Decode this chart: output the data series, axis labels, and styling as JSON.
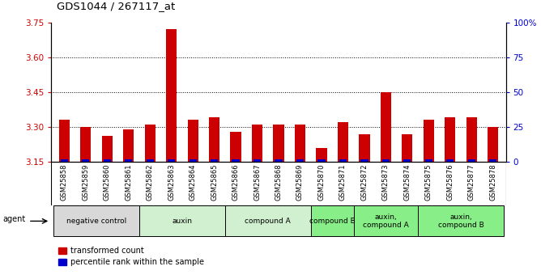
{
  "title": "GDS1044 / 267117_at",
  "samples": [
    "GSM25858",
    "GSM25859",
    "GSM25860",
    "GSM25861",
    "GSM25862",
    "GSM25863",
    "GSM25864",
    "GSM25865",
    "GSM25866",
    "GSM25867",
    "GSM25868",
    "GSM25869",
    "GSM25870",
    "GSM25871",
    "GSM25872",
    "GSM25873",
    "GSM25874",
    "GSM25875",
    "GSM25876",
    "GSM25877",
    "GSM25878"
  ],
  "red_values": [
    3.33,
    3.3,
    3.26,
    3.29,
    3.31,
    3.72,
    3.33,
    3.34,
    3.28,
    3.31,
    3.31,
    3.31,
    3.21,
    3.32,
    3.27,
    3.45,
    3.27,
    3.33,
    3.34,
    3.34,
    3.3
  ],
  "blue_values": [
    2,
    2,
    2,
    2,
    2,
    2,
    2,
    2,
    2,
    2,
    2,
    2,
    2,
    2,
    2,
    2,
    2,
    2,
    2,
    2,
    2
  ],
  "ylim": [
    3.15,
    3.75
  ],
  "yticks_left": [
    3.15,
    3.3,
    3.45,
    3.6,
    3.75
  ],
  "yticks_right": [
    0,
    25,
    50,
    75,
    100
  ],
  "gridlines": [
    3.3,
    3.45,
    3.6
  ],
  "groups": [
    {
      "label": "negative control",
      "start": 0,
      "end": 4,
      "color": "#d8d8d8"
    },
    {
      "label": "auxin",
      "start": 4,
      "end": 8,
      "color": "#d0f0d0"
    },
    {
      "label": "compound A",
      "start": 8,
      "end": 12,
      "color": "#d0f0d0"
    },
    {
      "label": "compound B",
      "start": 12,
      "end": 14,
      "color": "#88ee88"
    },
    {
      "label": "auxin,\ncompound A",
      "start": 14,
      "end": 17,
      "color": "#88ee88"
    },
    {
      "label": "auxin,\ncompound B",
      "start": 17,
      "end": 21,
      "color": "#88ee88"
    }
  ],
  "bar_color_red": "#cc0000",
  "bar_color_blue": "#0000cc",
  "left_tick_color": "#cc0000",
  "right_tick_color": "#0000cc",
  "bar_width": 0.5,
  "blue_bar_width": 0.35,
  "legend_red": "transformed count",
  "legend_blue": "percentile rank within the sample",
  "xticklabel_bg": "#e0e0e0"
}
